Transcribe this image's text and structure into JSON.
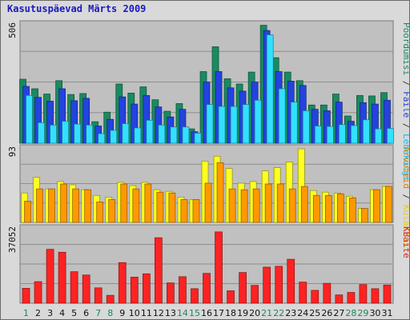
{
  "chart_data": {
    "title": "Kasutuspäevad Märts 2009",
    "type": "bar",
    "categories": [
      "1",
      "2",
      "3",
      "4",
      "5",
      "6",
      "7",
      "8",
      "9",
      "10",
      "11",
      "12",
      "13",
      "14",
      "15",
      "16",
      "17",
      "18",
      "19",
      "20",
      "21",
      "22",
      "23",
      "24",
      "25",
      "26",
      "27",
      "28",
      "29",
      "30",
      "31"
    ],
    "weekend_categories": [
      "1",
      "7",
      "8",
      "14",
      "15",
      "21",
      "22",
      "28",
      "29"
    ],
    "panels": [
      {
        "ymax_label": "506",
        "ymax": 506,
        "label_parts": [
          {
            "text": "Pöördumisi",
            "color": "#158765"
          },
          {
            "text": " / ",
            "color": "#3f3f3f"
          },
          {
            "text": "Faile",
            "color": "#1f3ed1"
          },
          {
            "text": " / ",
            "color": "#3f3f3f"
          },
          {
            "text": "Lehekülgi",
            "color": "#17b9e6"
          }
        ],
        "series": [
          {
            "name": "Pöördumisi",
            "color": "#1a8a60",
            "values": [
              268,
              228,
              206,
              262,
              204,
              208,
              90,
              130,
              248,
              210,
              236,
              182,
              134,
              166,
              60,
              300,
              404,
              270,
              248,
              298,
              494,
              358,
              298,
              262,
              160,
              160,
              206,
              114,
              200,
              198,
              212
            ]
          },
          {
            "name": "Faile",
            "color": "#2244dd",
            "values": [
              238,
              192,
              176,
              228,
              178,
              188,
              72,
              100,
              194,
              164,
              200,
              152,
              110,
              142,
              48,
              256,
              300,
              232,
              218,
              256,
              472,
              300,
              260,
              242,
              142,
              136,
              172,
              92,
              170,
              164,
              180
            ]
          },
          {
            "name": "Lehekülgi",
            "color": "#33e0ff",
            "values": [
              200,
              86,
              76,
              92,
              80,
              76,
              40,
              54,
              82,
              64,
              96,
              76,
              68,
              68,
              42,
              162,
              154,
              154,
              162,
              180,
              454,
              228,
              172,
              136,
              72,
              70,
              78,
              74,
              98,
              60,
              62
            ]
          }
        ]
      },
      {
        "ymax_label": "93",
        "ymax": 93,
        "label_parts": [
          {
            "text": "Arvuteid",
            "color": "#e08000"
          },
          {
            "text": " / ",
            "color": "#3f3f3f"
          },
          {
            "text": "Külastusi",
            "color": "#e8d200"
          }
        ],
        "series": [
          {
            "name": "Külastusi",
            "color": "#ffff22",
            "values": [
              36,
              55,
              41,
              50,
              46,
              40,
              33,
              31,
              49,
              45,
              49,
              40,
              38,
              31,
              28,
              75,
              81,
              66,
              48,
              50,
              63,
              67,
              74,
              90,
              39,
              37,
              36,
              32,
              17,
              40,
              44
            ]
          },
          {
            "name": "Arvuteid",
            "color": "#ff9900",
            "values": [
              26,
              41,
              41,
              47,
              41,
              40,
              25,
              28,
              47,
              41,
              47,
              37,
              36,
              28,
              28,
              48,
              73,
              41,
              40,
              41,
              47,
              47,
              41,
              44,
              33,
              33,
              35,
              30,
              17,
              40,
              44
            ]
          }
        ]
      },
      {
        "ymax_label": "37052",
        "ymax": 37052,
        "label_parts": [
          {
            "text": "KBaite",
            "color": "#dd2222"
          }
        ],
        "series": [
          {
            "name": "KBaite",
            "color": "#ff2222",
            "values": [
              7200,
              10400,
              26000,
              24600,
              15200,
              13600,
              7400,
              3800,
              19600,
              12600,
              14200,
              31600,
              9800,
              12800,
              7000,
              14400,
              34400,
              6000,
              14800,
              8600,
              17400,
              17800,
              21200,
              10200,
              6200,
              9600,
              4000,
              5200,
              9000,
              7000,
              8800
            ]
          }
        ]
      }
    ]
  }
}
